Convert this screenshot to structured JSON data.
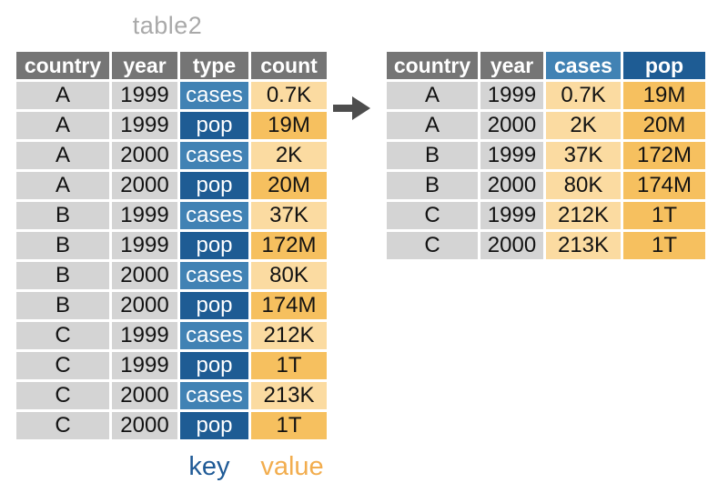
{
  "title": "table2",
  "annotations": {
    "key_label": "key",
    "value_label": "value"
  },
  "arrow_icon": "right-arrow",
  "colors": {
    "header_gray": "#757575",
    "cell_gray": "#d4d4d4",
    "blue_light": "#4182b4",
    "blue_dark": "#1e5c94",
    "orange_light": "#fbdba1",
    "orange_dark": "#f6c05f",
    "title_gray": "#a9a9a9",
    "arrow_gray": "#4d4d4d",
    "key_label_blue": "#1f5a96",
    "value_label_orange": "#f2ad4e",
    "cell_text": "#121212",
    "header_text": "#ffffff"
  },
  "long_table": {
    "columns": [
      "country",
      "year",
      "type",
      "count"
    ],
    "rows": [
      {
        "country": "A",
        "year": "1999",
        "type": "cases",
        "count": "0.7K"
      },
      {
        "country": "A",
        "year": "1999",
        "type": "pop",
        "count": "19M"
      },
      {
        "country": "A",
        "year": "2000",
        "type": "cases",
        "count": "2K"
      },
      {
        "country": "A",
        "year": "2000",
        "type": "pop",
        "count": "20M"
      },
      {
        "country": "B",
        "year": "1999",
        "type": "cases",
        "count": "37K"
      },
      {
        "country": "B",
        "year": "1999",
        "type": "pop",
        "count": "172M"
      },
      {
        "country": "B",
        "year": "2000",
        "type": "cases",
        "count": "80K"
      },
      {
        "country": "B",
        "year": "2000",
        "type": "pop",
        "count": "174M"
      },
      {
        "country": "C",
        "year": "1999",
        "type": "cases",
        "count": "212K"
      },
      {
        "country": "C",
        "year": "1999",
        "type": "pop",
        "count": "1T"
      },
      {
        "country": "C",
        "year": "2000",
        "type": "cases",
        "count": "213K"
      },
      {
        "country": "C",
        "year": "2000",
        "type": "pop",
        "count": "1T"
      }
    ]
  },
  "wide_table": {
    "columns": [
      "country",
      "year",
      "cases",
      "pop"
    ],
    "rows": [
      {
        "country": "A",
        "year": "1999",
        "cases": "0.7K",
        "pop": "19M"
      },
      {
        "country": "A",
        "year": "2000",
        "cases": "2K",
        "pop": "20M"
      },
      {
        "country": "B",
        "year": "1999",
        "cases": "37K",
        "pop": "172M"
      },
      {
        "country": "B",
        "year": "2000",
        "cases": "80K",
        "pop": "174M"
      },
      {
        "country": "C",
        "year": "1999",
        "cases": "212K",
        "pop": "1T"
      },
      {
        "country": "C",
        "year": "2000",
        "cases": "213K",
        "pop": "1T"
      }
    ]
  }
}
